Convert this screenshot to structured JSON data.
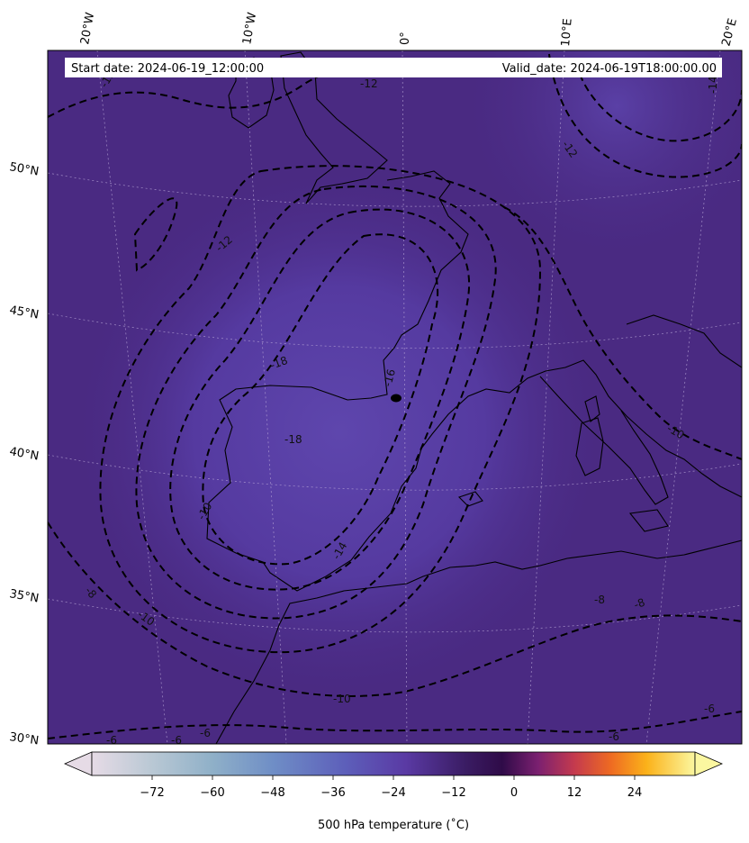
{
  "header": {
    "start_date": "Start date: 2024-06-19_12:00:00",
    "valid_date": "Valid_date: 2024-06-19T18:00:00.00"
  },
  "longitude_labels": [
    "20°W",
    "10°W",
    "0°",
    "10°E",
    "20°E"
  ],
  "latitude_labels": [
    "50°N",
    "45°N",
    "40°N",
    "35°N",
    "30°N"
  ],
  "contour_labels": [
    "-12",
    "-12",
    "-12",
    "-14",
    "-12",
    "-16",
    "-18",
    "-18",
    "-14",
    "-10",
    "-8",
    "-10",
    "-8",
    "-8",
    "-6",
    "-6",
    "-6",
    "-6",
    "-6",
    "-10",
    "-10"
  ],
  "colorbar": {
    "label": "500 hPa temperature (˚C)",
    "ticks": [
      "−72",
      "−60",
      "−48",
      "−36",
      "−24",
      "−12",
      "0",
      "12",
      "24"
    ],
    "tick_values": [
      -72,
      -60,
      -48,
      -36,
      -24,
      -12,
      0,
      12,
      24
    ],
    "range": [
      -84,
      36
    ],
    "colormap": "inferno-based with lightened negative range",
    "extend": "both"
  },
  "colors": {
    "field_dark": "#4a2a82",
    "field_cold": "#5d3fa8",
    "coast": "#000000",
    "contour": "#000000",
    "grid": "#b9a7d8"
  }
}
